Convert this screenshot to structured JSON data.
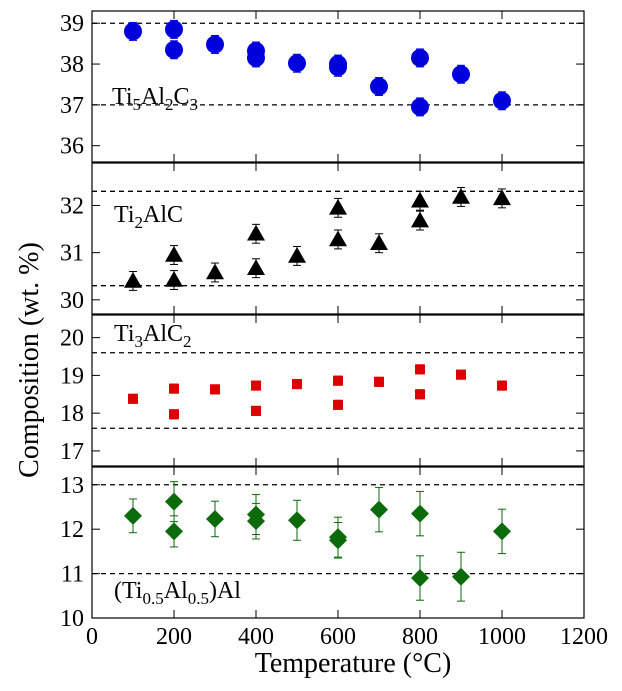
{
  "chart_data": {
    "type": "scatter",
    "xlabel": "Temperature (°C)",
    "ylabel": "Composition (wt. %)",
    "xlim": [
      0,
      1200
    ],
    "xticks": [
      0,
      200,
      400,
      600,
      800,
      1000,
      1200
    ],
    "xtick_labels": [
      "0",
      "200",
      "400",
      "600",
      "800",
      "1000",
      "1200"
    ],
    "panels": [
      {
        "label": {
          "pre": "Ti",
          "parts": [
            [
              "5",
              "Al"
            ],
            [
              "2",
              "C"
            ],
            [
              "3",
              ""
            ]
          ]
        },
        "label_text": "Ti5Al2C3",
        "marker": "circle",
        "color": "#0000dd",
        "ylim": [
          35.6,
          39.3
        ],
        "yticks": [
          36,
          37,
          38,
          39
        ],
        "ytick_labels": [
          "36",
          "37",
          "38",
          "39"
        ],
        "reference_lines": [
          37,
          39
        ],
        "points": [
          {
            "x": 100,
            "y": 38.8,
            "err": 0.22
          },
          {
            "x": 200,
            "y": 38.85,
            "err": 0.22
          },
          {
            "x": 200,
            "y": 38.35,
            "err": 0.22
          },
          {
            "x": 300,
            "y": 38.48,
            "err": 0.22
          },
          {
            "x": 400,
            "y": 38.32,
            "err": 0.22
          },
          {
            "x": 400,
            "y": 38.15,
            "err": 0.22
          },
          {
            "x": 500,
            "y": 38.02,
            "err": 0.22
          },
          {
            "x": 600,
            "y": 38.0,
            "err": 0.22
          },
          {
            "x": 600,
            "y": 37.92,
            "err": 0.22
          },
          {
            "x": 700,
            "y": 37.45,
            "err": 0.22
          },
          {
            "x": 800,
            "y": 38.15,
            "err": 0.22
          },
          {
            "x": 800,
            "y": 36.95,
            "err": 0.22
          },
          {
            "x": 900,
            "y": 37.75,
            "err": 0.22
          },
          {
            "x": 1000,
            "y": 37.1,
            "err": 0.22
          }
        ]
      },
      {
        "label": {
          "pre": "Ti",
          "parts": [
            [
              "2",
              "AlC"
            ]
          ]
        },
        "label_text": "Ti2AlC",
        "marker": "triangle",
        "color": "#000000",
        "ylim": [
          29.7,
          32.9
        ],
        "yticks": [
          30,
          31,
          32
        ],
        "ytick_labels": [
          "30",
          "31",
          "32"
        ],
        "reference_lines": [
          30.3,
          32.3
        ],
        "points": [
          {
            "x": 100,
            "y": 30.4,
            "err": 0.2
          },
          {
            "x": 200,
            "y": 30.42,
            "err": 0.2
          },
          {
            "x": 200,
            "y": 30.95,
            "err": 0.2
          },
          {
            "x": 300,
            "y": 30.58,
            "err": 0.2
          },
          {
            "x": 400,
            "y": 30.67,
            "err": 0.2
          },
          {
            "x": 400,
            "y": 31.4,
            "err": 0.2
          },
          {
            "x": 500,
            "y": 30.93,
            "err": 0.2
          },
          {
            "x": 600,
            "y": 31.28,
            "err": 0.2
          },
          {
            "x": 600,
            "y": 31.95,
            "err": 0.2
          },
          {
            "x": 700,
            "y": 31.2,
            "err": 0.2
          },
          {
            "x": 800,
            "y": 31.68,
            "err": 0.2
          },
          {
            "x": 800,
            "y": 32.1,
            "err": 0.2
          },
          {
            "x": 900,
            "y": 32.18,
            "err": 0.2
          },
          {
            "x": 1000,
            "y": 32.15,
            "err": 0.2
          }
        ]
      },
      {
        "label": {
          "pre": "Ti",
          "parts": [
            [
              "3",
              "AlC"
            ],
            [
              "2",
              ""
            ]
          ]
        },
        "label_text": "Ti3AlC2",
        "marker": "square",
        "color": "#dd0000",
        "ylim": [
          16.6,
          20.6
        ],
        "yticks": [
          17,
          18,
          19,
          20
        ],
        "ytick_labels": [
          "17",
          "18",
          "19",
          "20"
        ],
        "reference_lines": [
          17.6,
          19.6
        ],
        "points": [
          {
            "x": 100,
            "y": 18.38,
            "err": 0.12
          },
          {
            "x": 200,
            "y": 18.65,
            "err": 0.12
          },
          {
            "x": 200,
            "y": 17.97,
            "err": 0.12
          },
          {
            "x": 300,
            "y": 18.63,
            "err": 0.12
          },
          {
            "x": 400,
            "y": 18.73,
            "err": 0.12
          },
          {
            "x": 400,
            "y": 18.06,
            "err": 0.12
          },
          {
            "x": 500,
            "y": 18.77,
            "err": 0.12
          },
          {
            "x": 600,
            "y": 18.86,
            "err": 0.12
          },
          {
            "x": 600,
            "y": 18.22,
            "err": 0.12
          },
          {
            "x": 700,
            "y": 18.83,
            "err": 0.12
          },
          {
            "x": 800,
            "y": 19.16,
            "err": 0.12
          },
          {
            "x": 800,
            "y": 18.5,
            "err": 0.12
          },
          {
            "x": 900,
            "y": 19.02,
            "err": 0.12
          },
          {
            "x": 1000,
            "y": 18.73,
            "err": 0.12
          }
        ]
      },
      {
        "label": {
          "pre": "(Ti",
          "parts": [
            [
              "0.5",
              "Al"
            ],
            [
              "0.5",
              ")Al"
            ]
          ]
        },
        "label_text": "(Ti0.5Al0.5)Al",
        "marker": "diamond",
        "color": "#0b6b0b",
        "ylim": [
          10.0,
          13.4
        ],
        "yticks": [
          10,
          11,
          12,
          13
        ],
        "ytick_labels": [
          "10",
          "11",
          "12",
          "13"
        ],
        "reference_lines": [
          11,
          13
        ],
        "points": [
          {
            "x": 100,
            "y": 12.3,
            "err": 0.38
          },
          {
            "x": 200,
            "y": 12.62,
            "err": 0.45
          },
          {
            "x": 200,
            "y": 11.95,
            "err": 0.35
          },
          {
            "x": 300,
            "y": 12.23,
            "err": 0.4
          },
          {
            "x": 400,
            "y": 12.33,
            "err": 0.45
          },
          {
            "x": 400,
            "y": 12.18,
            "err": 0.4
          },
          {
            "x": 500,
            "y": 12.2,
            "err": 0.45
          },
          {
            "x": 600,
            "y": 11.82,
            "err": 0.45
          },
          {
            "x": 600,
            "y": 11.75,
            "err": 0.4
          },
          {
            "x": 700,
            "y": 12.44,
            "err": 0.5
          },
          {
            "x": 800,
            "y": 12.35,
            "err": 0.5
          },
          {
            "x": 800,
            "y": 10.9,
            "err": 0.5
          },
          {
            "x": 900,
            "y": 10.93,
            "err": 0.55
          },
          {
            "x": 1000,
            "y": 11.95,
            "err": 0.5
          }
        ]
      }
    ]
  }
}
